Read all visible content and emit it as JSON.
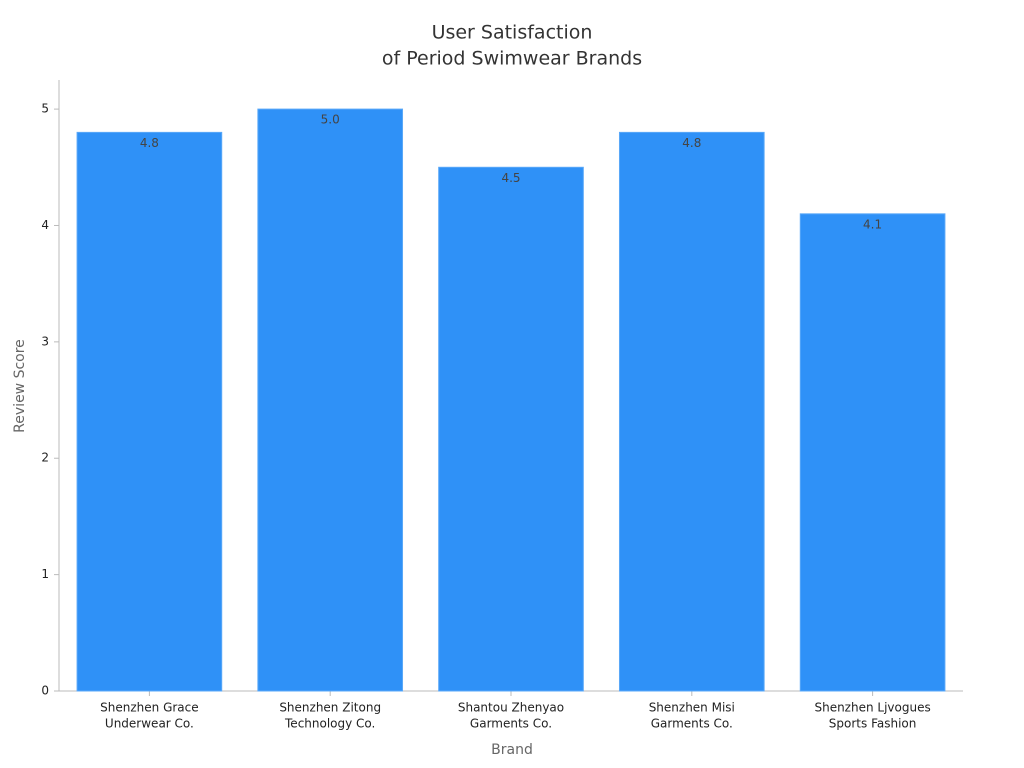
{
  "chart_data": {
    "type": "bar",
    "title": [
      "User Satisfaction",
      "of Period Swimwear Brands"
    ],
    "xlabel": "Brand",
    "ylabel": "Review Score",
    "categories": [
      [
        "Shenzhen Grace",
        "Underwear Co."
      ],
      [
        "Shenzhen Zitong",
        "Technology Co."
      ],
      [
        "Shantou Zhenyao",
        "Garments Co."
      ],
      [
        "Shenzhen Misi",
        "Garments Co."
      ],
      [
        "Shenzhen Ljvogues",
        "Sports Fashion"
      ]
    ],
    "values": [
      4.8,
      5.0,
      4.5,
      4.8,
      4.1
    ],
    "value_labels": [
      "4.8",
      "5.0",
      "4.5",
      "4.8",
      "4.1"
    ],
    "color": "#2f91f7",
    "ylim": [
      0,
      5.25
    ],
    "yticks": [
      0,
      1,
      2,
      3,
      4,
      5
    ],
    "grid": false
  }
}
